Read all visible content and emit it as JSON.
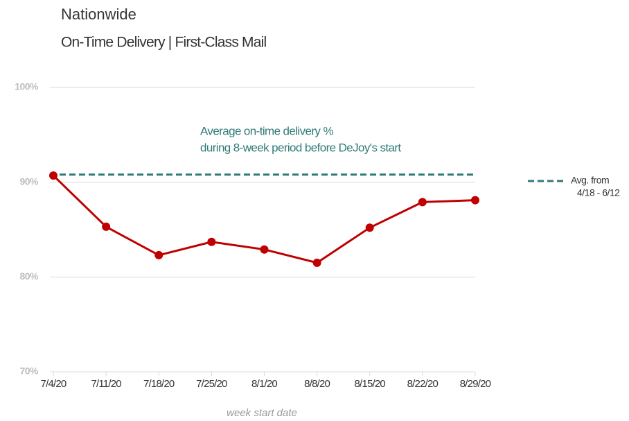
{
  "chart_data": {
    "type": "line",
    "title": "Nationwide",
    "subtitle": "On-Time Delivery | First-Class Mail",
    "xlabel": "week start date",
    "categories": [
      "7/4/20",
      "7/11/20",
      "7/18/20",
      "7/25/20",
      "8/1/20",
      "8/8/20",
      "8/15/20",
      "8/22/20",
      "8/29/20"
    ],
    "values": [
      90.7,
      85.3,
      82.3,
      83.7,
      82.9,
      81.5,
      85.2,
      87.9,
      88.1
    ],
    "color": "#c00000",
    "ylim": [
      70,
      100
    ],
    "yticks": [
      {
        "value": 70,
        "label": "70%"
      },
      {
        "value": 80,
        "label": "80%"
      },
      {
        "value": 90,
        "label": "90%"
      },
      {
        "value": 100,
        "label": "100%"
      }
    ],
    "grid": true,
    "reference": {
      "value": 90.8,
      "color": "#2f7a78",
      "annotation": [
        "Average on-time delivery %",
        "during 8-week period before DeJoy's start"
      ],
      "legend": [
        "Avg. from",
        "4/18 - 6/12"
      ]
    }
  }
}
